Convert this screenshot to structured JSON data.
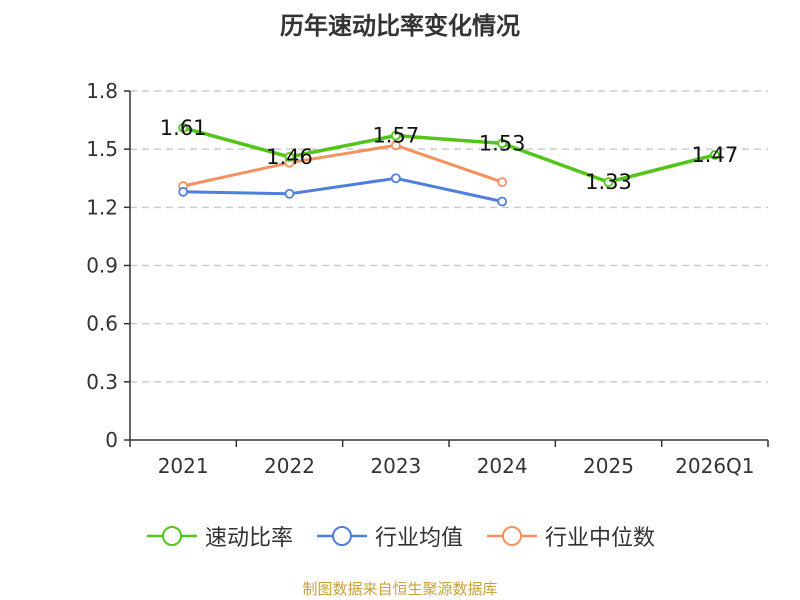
{
  "chart_data": {
    "type": "line",
    "title": "历年速动比率变化情况",
    "categories": [
      "2021",
      "2022",
      "2023",
      "2024",
      "2025",
      "2026Q1"
    ],
    "ylim": [
      0,
      1.8
    ],
    "yticks": [
      "0",
      "0.3",
      "0.6",
      "0.9",
      "1.2",
      "1.5",
      "1.8"
    ],
    "grid": true,
    "legend_position": "bottom",
    "series": [
      {
        "name": "速动比率",
        "color": "#52c41a",
        "values": [
          1.61,
          1.46,
          1.57,
          1.53,
          1.33,
          1.47
        ],
        "labels": [
          "1.61",
          "1.46",
          "1.57",
          "1.53",
          "1.33",
          "1.47"
        ]
      },
      {
        "name": "行业均值",
        "color": "#4f7fdc",
        "values": [
          1.28,
          1.27,
          1.35,
          1.23,
          null,
          null
        ]
      },
      {
        "name": "行业中位数",
        "color": "#f4915e",
        "values": [
          1.31,
          1.43,
          1.52,
          1.33,
          null,
          null
        ]
      }
    ]
  },
  "footer": {
    "source": "制图数据来自恒生聚源数据库"
  }
}
